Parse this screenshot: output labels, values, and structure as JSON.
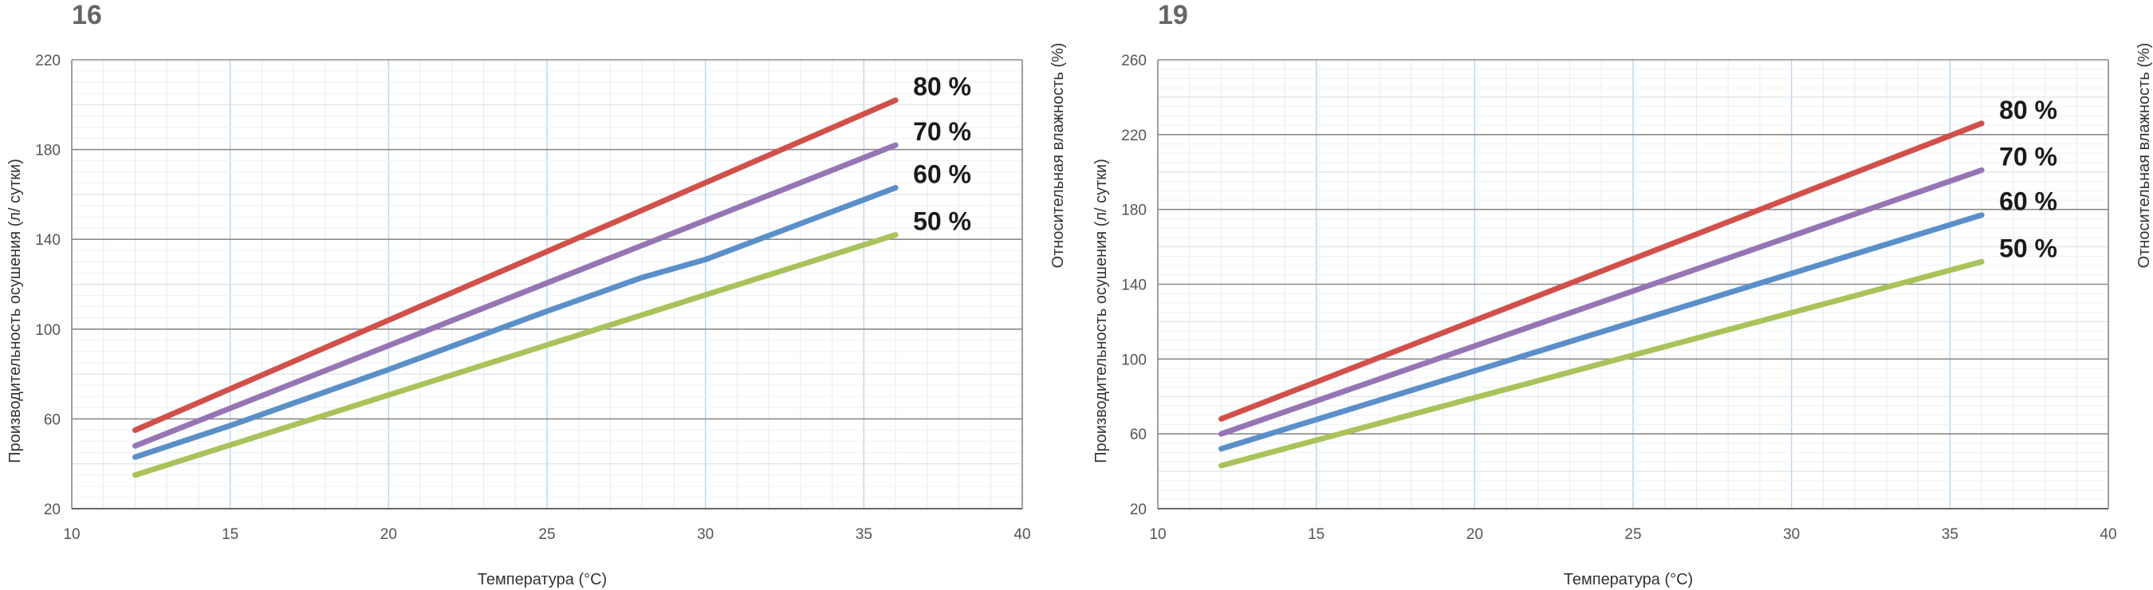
{
  "chart_data": [
    {
      "type": "line",
      "title": "16",
      "xlabel": "Температура (°C)",
      "ylabel": "Производительность осушения (л/ сутки)",
      "y2label": "Относительная влажность (%)",
      "xlim": [
        10,
        40
      ],
      "ylim": [
        20,
        220
      ],
      "xticks": [
        "10",
        "15",
        "20",
        "25",
        "30",
        "35",
        "40"
      ],
      "yticks": [
        "20",
        "60",
        "100",
        "140",
        "180",
        "220"
      ],
      "grid": true,
      "series": [
        {
          "name": "80 %",
          "color": "#d1504a",
          "x": [
            12,
            36
          ],
          "y": [
            55,
            202
          ]
        },
        {
          "name": "70 %",
          "color": "#9675b4",
          "x": [
            12,
            36
          ],
          "y": [
            48,
            182
          ]
        },
        {
          "name": "60 %",
          "color": "#5a8fc9",
          "x": [
            12,
            15,
            20,
            25,
            28,
            30,
            33,
            36
          ],
          "y": [
            43,
            57,
            82,
            108,
            123,
            131,
            147,
            163
          ]
        },
        {
          "name": "50 %",
          "color": "#a9c35a",
          "x": [
            12,
            36
          ],
          "y": [
            35,
            142
          ]
        }
      ]
    },
    {
      "type": "line",
      "title": "19",
      "xlabel": "Температура (°C)",
      "ylabel": "Производительность осушения (л/ сутки)",
      "y2label": "Относительная влажность (%)",
      "xlim": [
        10,
        40
      ],
      "ylim": [
        20,
        260
      ],
      "xticks": [
        "10",
        "15",
        "20",
        "25",
        "30",
        "35",
        "40"
      ],
      "yticks": [
        "20",
        "60",
        "100",
        "140",
        "180",
        "220",
        "260"
      ],
      "grid": true,
      "series": [
        {
          "name": "80 %",
          "color": "#d1504a",
          "x": [
            12,
            36
          ],
          "y": [
            68,
            226
          ]
        },
        {
          "name": "70 %",
          "color": "#9675b4",
          "x": [
            12,
            36
          ],
          "y": [
            60,
            201
          ]
        },
        {
          "name": "60 %",
          "color": "#5a8fc9",
          "x": [
            12,
            36
          ],
          "y": [
            52,
            177
          ]
        },
        {
          "name": "50 %",
          "color": "#a9c35a",
          "x": [
            12,
            36
          ],
          "y": [
            43,
            152
          ]
        }
      ]
    }
  ]
}
